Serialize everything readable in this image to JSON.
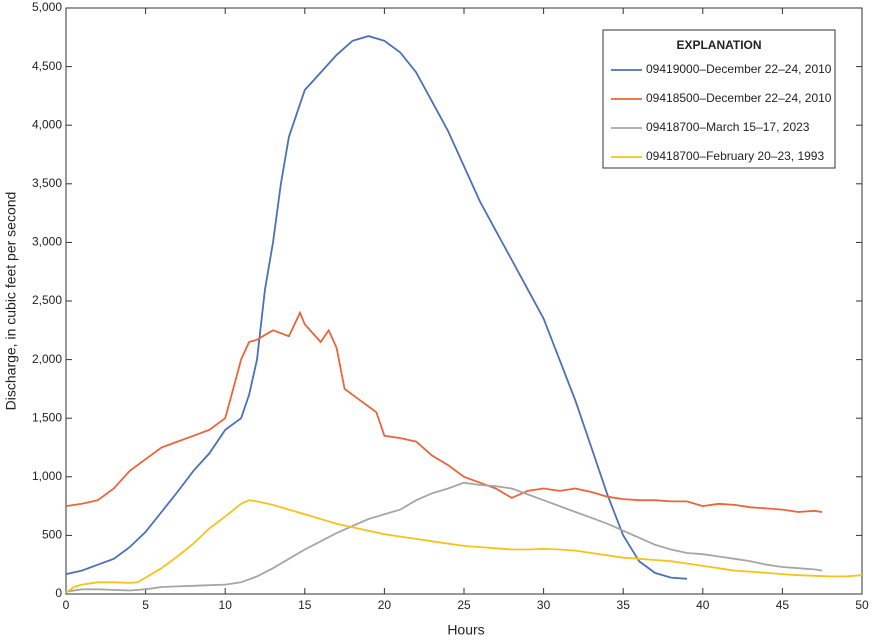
{
  "chart_data": {
    "type": "line",
    "xlabel": "Hours",
    "ylabel": "Discharge, in cubic feet per second",
    "legend_title": "EXPLANATION",
    "legend": "top-right",
    "xlim": [
      0,
      50
    ],
    "xticks": [
      0,
      5,
      10,
      15,
      20,
      25,
      30,
      35,
      40,
      45,
      50
    ],
    "ylim": [
      0,
      5000
    ],
    "yticks": [
      0,
      500,
      {
        "value": 1000,
        "label": "1,000"
      },
      {
        "value": 1500,
        "label": "1,500"
      },
      {
        "value": 2000,
        "label": "2,000"
      },
      {
        "value": 2500,
        "label": "2,500"
      },
      {
        "value": 3000,
        "label": "3,000"
      },
      {
        "value": 3500,
        "label": "3,500"
      },
      {
        "value": 4000,
        "label": "4,000"
      },
      {
        "value": 4500,
        "label": "4,500"
      },
      {
        "value": 5000,
        "label": "5,000"
      }
    ],
    "series": [
      {
        "name": "09419000–December 22–24, 2010",
        "color": "#4a70b8",
        "x": [
          0,
          1,
          2,
          3,
          4,
          5,
          6,
          7,
          8,
          9,
          10,
          11,
          11.5,
          12,
          12.5,
          13,
          13.5,
          14,
          15,
          16,
          17,
          18,
          19,
          20,
          21,
          22,
          23,
          24,
          25,
          26,
          27,
          28,
          29,
          30,
          31,
          32,
          33,
          34,
          35,
          36,
          37,
          38,
          39
        ],
        "values": [
          170,
          200,
          250,
          300,
          400,
          530,
          700,
          870,
          1050,
          1200,
          1400,
          1500,
          1700,
          2000,
          2600,
          3000,
          3500,
          3900,
          4300,
          4450,
          4600,
          4720,
          4760,
          4720,
          4620,
          4450,
          4200,
          3950,
          3650,
          3350,
          3100,
          2850,
          2600,
          2350,
          2000,
          1650,
          1250,
          850,
          500,
          280,
          180,
          140,
          130
        ]
      },
      {
        "name": "09418500–December 22–24, 2010",
        "color": "#e8663a",
        "x": [
          0,
          1,
          2,
          3,
          4,
          5,
          6,
          7,
          8,
          9,
          10,
          10.5,
          11,
          11.5,
          12,
          13,
          14,
          14.7,
          15,
          16,
          16.5,
          17,
          17.5,
          18,
          19,
          19.5,
          20,
          21,
          22,
          23,
          24,
          25,
          26,
          27,
          28,
          29,
          30,
          31,
          32,
          33,
          34,
          35,
          36,
          37,
          38,
          39,
          40,
          41,
          42,
          43,
          44,
          45,
          46,
          47,
          47.5
        ],
        "values": [
          750,
          770,
          800,
          900,
          1050,
          1150,
          1250,
          1300,
          1350,
          1400,
          1500,
          1750,
          2000,
          2150,
          2170,
          2250,
          2200,
          2400,
          2300,
          2150,
          2250,
          2100,
          1750,
          1700,
          1600,
          1550,
          1350,
          1330,
          1300,
          1180,
          1100,
          1000,
          950,
          900,
          820,
          880,
          900,
          880,
          900,
          870,
          830,
          810,
          800,
          800,
          790,
          790,
          750,
          770,
          760,
          740,
          730,
          720,
          700,
          710,
          700
        ]
      },
      {
        "name": "09418700–March 15–17, 2023",
        "color": "#a6a6a6",
        "x": [
          0,
          1,
          2,
          3,
          4,
          5,
          6,
          7,
          8,
          9,
          10,
          11,
          12,
          13,
          14,
          15,
          16,
          17,
          18,
          19,
          20,
          21,
          22,
          23,
          24,
          25,
          26,
          27,
          28,
          29,
          30,
          31,
          32,
          33,
          34,
          35,
          36,
          37,
          38,
          39,
          40,
          41,
          42,
          43,
          44,
          45,
          46,
          47,
          47.5
        ],
        "values": [
          20,
          40,
          40,
          35,
          30,
          40,
          60,
          65,
          70,
          75,
          80,
          100,
          150,
          220,
          300,
          380,
          450,
          520,
          580,
          640,
          680,
          720,
          800,
          860,
          900,
          950,
          930,
          920,
          900,
          850,
          800,
          750,
          700,
          650,
          600,
          540,
          480,
          420,
          380,
          350,
          340,
          320,
          300,
          280,
          250,
          230,
          220,
          210,
          200
        ]
      },
      {
        "name": "09418700–February 20–23, 1993",
        "color": "#f6c31c",
        "x": [
          0,
          0.5,
          1,
          2,
          3,
          4,
          4.5,
          5,
          6,
          7,
          8,
          9,
          10,
          11,
          11.5,
          12,
          13,
          14,
          15,
          16,
          17,
          18,
          19,
          20,
          21,
          22,
          23,
          24,
          25,
          26,
          27,
          28,
          29,
          30,
          31,
          32,
          33,
          34,
          35,
          36,
          37,
          38,
          39,
          40,
          41,
          42,
          43,
          44,
          45,
          46,
          47,
          48,
          49,
          50
        ],
        "values": [
          10,
          60,
          80,
          100,
          100,
          95,
          100,
          140,
          220,
          320,
          430,
          560,
          660,
          770,
          800,
          790,
          760,
          720,
          680,
          640,
          600,
          570,
          540,
          510,
          490,
          470,
          450,
          430,
          410,
          400,
          390,
          380,
          380,
          385,
          380,
          370,
          350,
          330,
          310,
          300,
          290,
          280,
          260,
          240,
          220,
          200,
          190,
          180,
          170,
          160,
          155,
          150,
          150,
          160
        ]
      }
    ]
  }
}
